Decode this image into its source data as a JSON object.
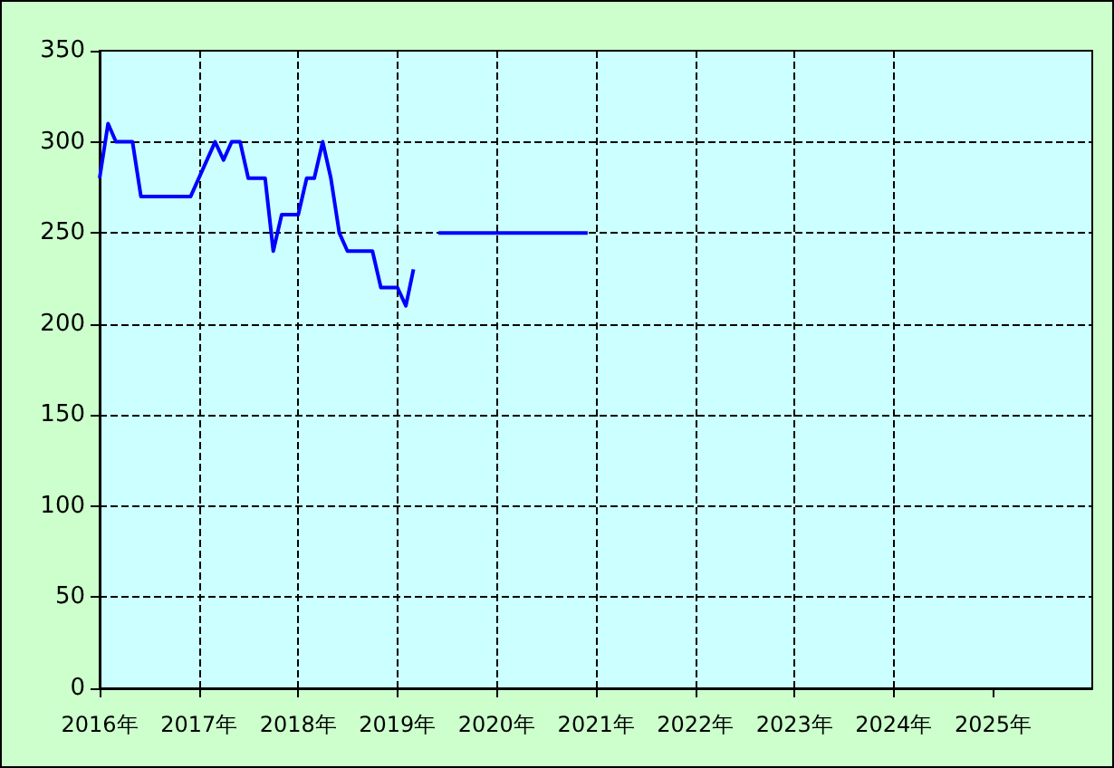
{
  "chart_data": {
    "type": "line",
    "x": [
      "2016-01",
      "2016-02",
      "2016-03",
      "2016-05",
      "2016-06",
      "2016-12",
      "2017-03",
      "2017-04",
      "2017-05",
      "2017-06",
      "2017-07",
      "2017-09",
      "2017-10",
      "2017-11",
      "2018-01",
      "2018-02",
      "2018-03",
      "2018-04",
      "2018-05",
      "2018-06",
      "2018-07",
      "2018-10",
      "2018-11",
      "2019-01",
      "2019-02",
      "2019-03",
      "2019-04",
      "2019-06",
      "2020-12"
    ],
    "series": [
      {
        "color": "#0000ff",
        "values": [
          280,
          310,
          300,
          300,
          270,
          270,
          300,
          290,
          300,
          300,
          280,
          280,
          240,
          260,
          260,
          280,
          280,
          300,
          280,
          250,
          240,
          240,
          220,
          220,
          210,
          230,
          null,
          250,
          250
        ]
      }
    ],
    "xlim": [
      "2016-01",
      "2026-01"
    ],
    "xticks": [
      {
        "value": "2016-01",
        "label": "2016年"
      },
      {
        "value": "2017-01",
        "label": "2017年"
      },
      {
        "value": "2018-01",
        "label": "2018年"
      },
      {
        "value": "2019-01",
        "label": "2019年"
      },
      {
        "value": "2020-01",
        "label": "2020年"
      },
      {
        "value": "2021-01",
        "label": "2021年"
      },
      {
        "value": "2022-01",
        "label": "2022年"
      },
      {
        "value": "2023-01",
        "label": "2023年"
      },
      {
        "value": "2024-01",
        "label": "2024年"
      },
      {
        "value": "2025-01",
        "label": "2025年"
      }
    ],
    "ylim": [
      0,
      350
    ],
    "yticks": [
      0,
      50,
      100,
      150,
      200,
      250,
      300,
      350
    ],
    "grid": true,
    "marker": "none",
    "line_style": "solid"
  }
}
